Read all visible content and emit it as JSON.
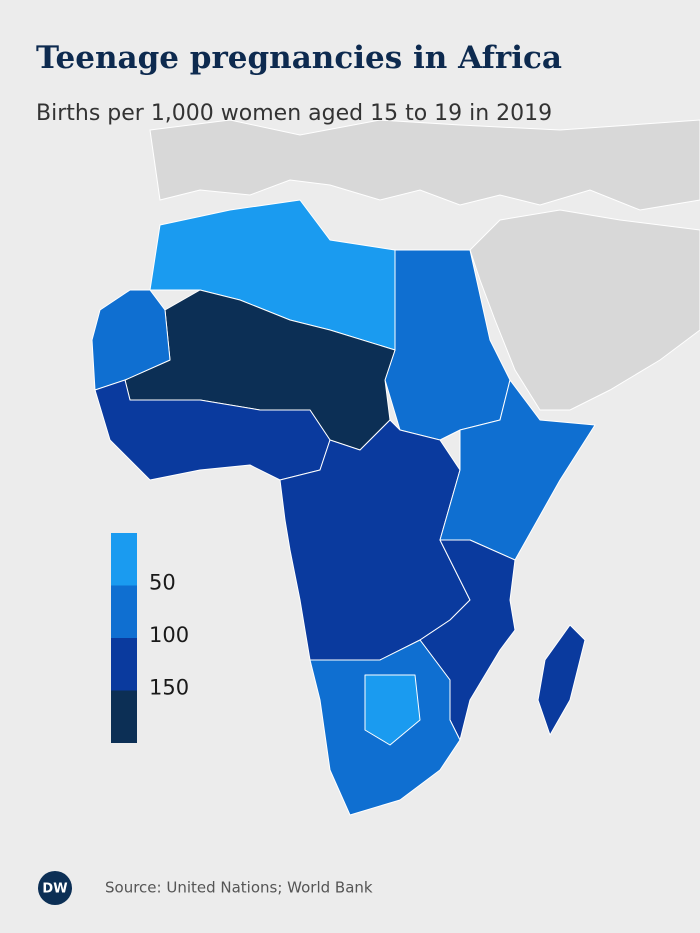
{
  "title": "Teenage pregnancies in Africa",
  "subtitle": "Births per 1,000 women aged 15 to 19 in 2019",
  "legend": {
    "colors": [
      "#1a9bf0",
      "#0f6fd1",
      "#0a3a9e",
      "#0c2f55"
    ],
    "ticks": [
      50,
      100,
      150
    ]
  },
  "logo": "DW",
  "source": "Source: United Nations; World Bank"
}
